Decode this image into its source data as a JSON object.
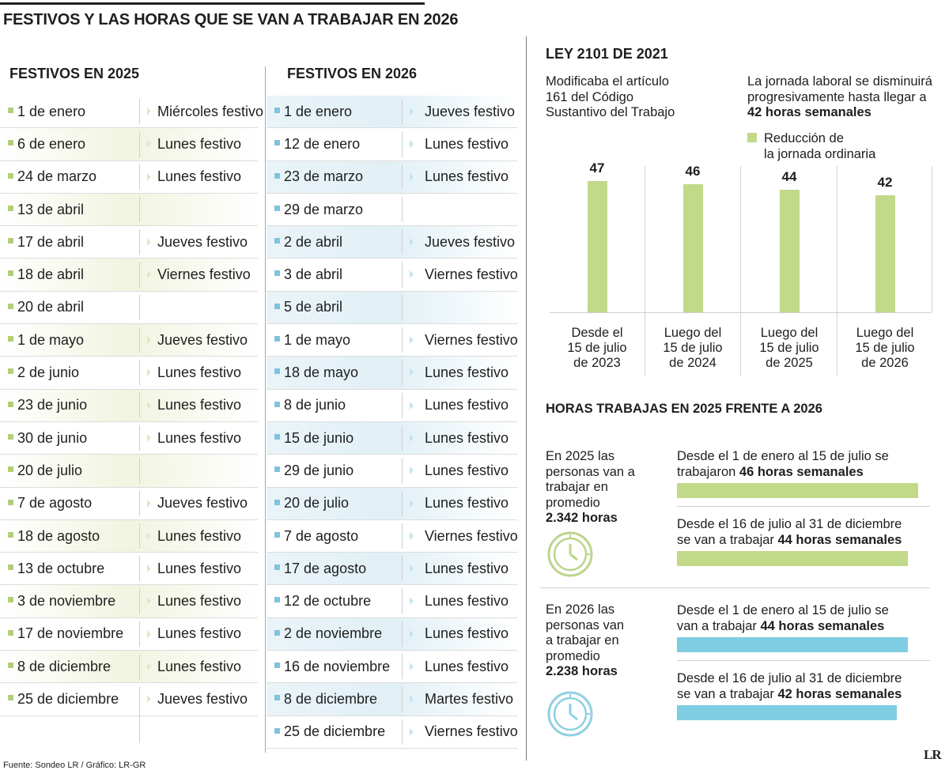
{
  "title": "FESTIVOS Y LAS HORAS QUE SE VAN A TRABAJAR EN 2026",
  "festivos_2025": {
    "title": "FESTIVOS EN 2025",
    "rows": [
      {
        "date": "1 de enero",
        "desc": "Miércoles festivo"
      },
      {
        "date": "6 de enero",
        "desc": "Lunes festivo"
      },
      {
        "date": "24 de marzo",
        "desc": "Lunes festivo"
      },
      {
        "date": "13 de abril",
        "desc": ""
      },
      {
        "date": "17 de abril",
        "desc": "Jueves festivo"
      },
      {
        "date": "18 de abril",
        "desc": "Viernes festivo"
      },
      {
        "date": "20 de abril",
        "desc": ""
      },
      {
        "date": "1 de mayo",
        "desc": "Jueves festivo"
      },
      {
        "date": "2 de junio",
        "desc": "Lunes festivo"
      },
      {
        "date": "23 de junio",
        "desc": "Lunes festivo"
      },
      {
        "date": "30 de junio",
        "desc": "Lunes festivo"
      },
      {
        "date": "20 de julio",
        "desc": ""
      },
      {
        "date": "7 de agosto",
        "desc": "Jueves festivo"
      },
      {
        "date": "18 de agosto",
        "desc": "Lunes festivo"
      },
      {
        "date": "13 de octubre",
        "desc": "Lunes festivo"
      },
      {
        "date": "3 de noviembre",
        "desc": "Lunes festivo"
      },
      {
        "date": "17 de noviembre",
        "desc": "Lunes festivo"
      },
      {
        "date": "8 de diciembre",
        "desc": "Lunes festivo"
      },
      {
        "date": "25 de diciembre",
        "desc": "Jueves festivo"
      }
    ]
  },
  "festivos_2026": {
    "title": "FESTIVOS EN 2026",
    "rows": [
      {
        "date": "1 de enero",
        "desc": "Jueves festivo"
      },
      {
        "date": "12 de enero",
        "desc": "Lunes festivo"
      },
      {
        "date": "23 de marzo",
        "desc": "Lunes festivo"
      },
      {
        "date": "29 de marzo",
        "desc": ""
      },
      {
        "date": "2 de abril",
        "desc": "Jueves festivo"
      },
      {
        "date": "3 de abril",
        "desc": "Viernes festivo"
      },
      {
        "date": "5 de abril",
        "desc": ""
      },
      {
        "date": "1 de mayo",
        "desc": "Viernes festivo"
      },
      {
        "date": "18 de mayo",
        "desc": "Lunes festivo"
      },
      {
        "date": "8 de junio",
        "desc": "Lunes festivo"
      },
      {
        "date": "15 de junio",
        "desc": "Lunes festivo"
      },
      {
        "date": "29 de junio",
        "desc": "Lunes festivo"
      },
      {
        "date": "20 de julio",
        "desc": "Lunes festivo"
      },
      {
        "date": "7 de agosto",
        "desc": "Viernes festivo"
      },
      {
        "date": "17 de agosto",
        "desc": "Lunes festivo"
      },
      {
        "date": "12 de octubre",
        "desc": "Lunes festivo"
      },
      {
        "date": "2 de noviembre",
        "desc": "Lunes festivo"
      },
      {
        "date": "16 de noviembre",
        "desc": "Lunes festivo"
      },
      {
        "date": "8 de diciembre",
        "desc": "Martes festivo"
      },
      {
        "date": "25 de diciembre",
        "desc": "Viernes festivo"
      }
    ]
  },
  "ley": {
    "title": "LEY 2101 DE 2021",
    "left_text_lines": [
      "Modificaba el artículo",
      "161 del Código",
      "Sustantivo del Trabajo"
    ],
    "right_text_lines": [
      "La jornada laboral se disminuirá",
      "progresivamente hasta llegar a"
    ],
    "right_text_bold": "42 horas semanales",
    "legend_lines": [
      "Reducción de",
      "la jornada ordinaria"
    ]
  },
  "chart_data": [
    {
      "type": "bar",
      "title": "LEY 2101 DE 2021",
      "legend": [
        "Reducción de la jornada ordinaria"
      ],
      "categories": [
        [
          "Desde el",
          "15 de julio",
          "de 2023"
        ],
        [
          "Luego del",
          "15 de julio",
          "de 2024"
        ],
        [
          "Luego del",
          "15 de julio",
          "de 2025"
        ],
        [
          "Luego del",
          "15 de julio",
          "de 2026"
        ]
      ],
      "values": [
        47,
        46,
        44,
        42
      ],
      "value_labels": [
        "47",
        "46",
        "44",
        "42"
      ],
      "ylim": [
        0,
        47
      ]
    },
    {
      "type": "bar",
      "orientation": "horizontal",
      "title": "HORAS TRABAJAS EN 2025 FRENTE A 2026",
      "unit": "horas semanales",
      "series": [
        {
          "name": "2025",
          "color": "#c2d98a",
          "values": [
            46,
            44
          ]
        },
        {
          "name": "2026",
          "color": "#7fcde2",
          "values": [
            44,
            42
          ]
        }
      ]
    }
  ],
  "horas": {
    "title": "HORAS TRABAJAS EN 2025 FRENTE A 2026",
    "y2025": {
      "lines": [
        "En 2025 las",
        "personas van a",
        "trabajar en",
        "promedio"
      ],
      "total": "2.342 horas",
      "periods": [
        {
          "pre": "Desde el 1 de enero al 15 de julio se",
          "line2": "trabajaron",
          "bold": "46 horas semanales",
          "value": 46
        },
        {
          "pre": "Desde el 16 de julio al 31 de diciembre",
          "line2": "se van a trabajar",
          "bold": "44 horas semanales",
          "value": 44
        }
      ]
    },
    "y2026": {
      "lines": [
        "En 2026 las",
        "personas van",
        "a trabajar en",
        "promedio"
      ],
      "total": "2.238 horas",
      "periods": [
        {
          "pre": "Desde el 1 de enero al 15 de julio se",
          "line2": "van a trabajar",
          "bold": "44 horas semanales",
          "value": 44
        },
        {
          "pre": "Desde el 16 de julio al 31 de diciembre",
          "line2": "se van a trabajar",
          "bold": "42 horas semanales",
          "value": 42
        }
      ]
    }
  },
  "colors": {
    "green": "#c2d98a",
    "blue": "#7fcde2",
    "clock_green": "#bcd58a",
    "clock_blue": "#8fd0e3"
  },
  "footer": {
    "source": "Fuente: Sondeo LR / Gráfico: LR-GR",
    "logo": "LR"
  }
}
